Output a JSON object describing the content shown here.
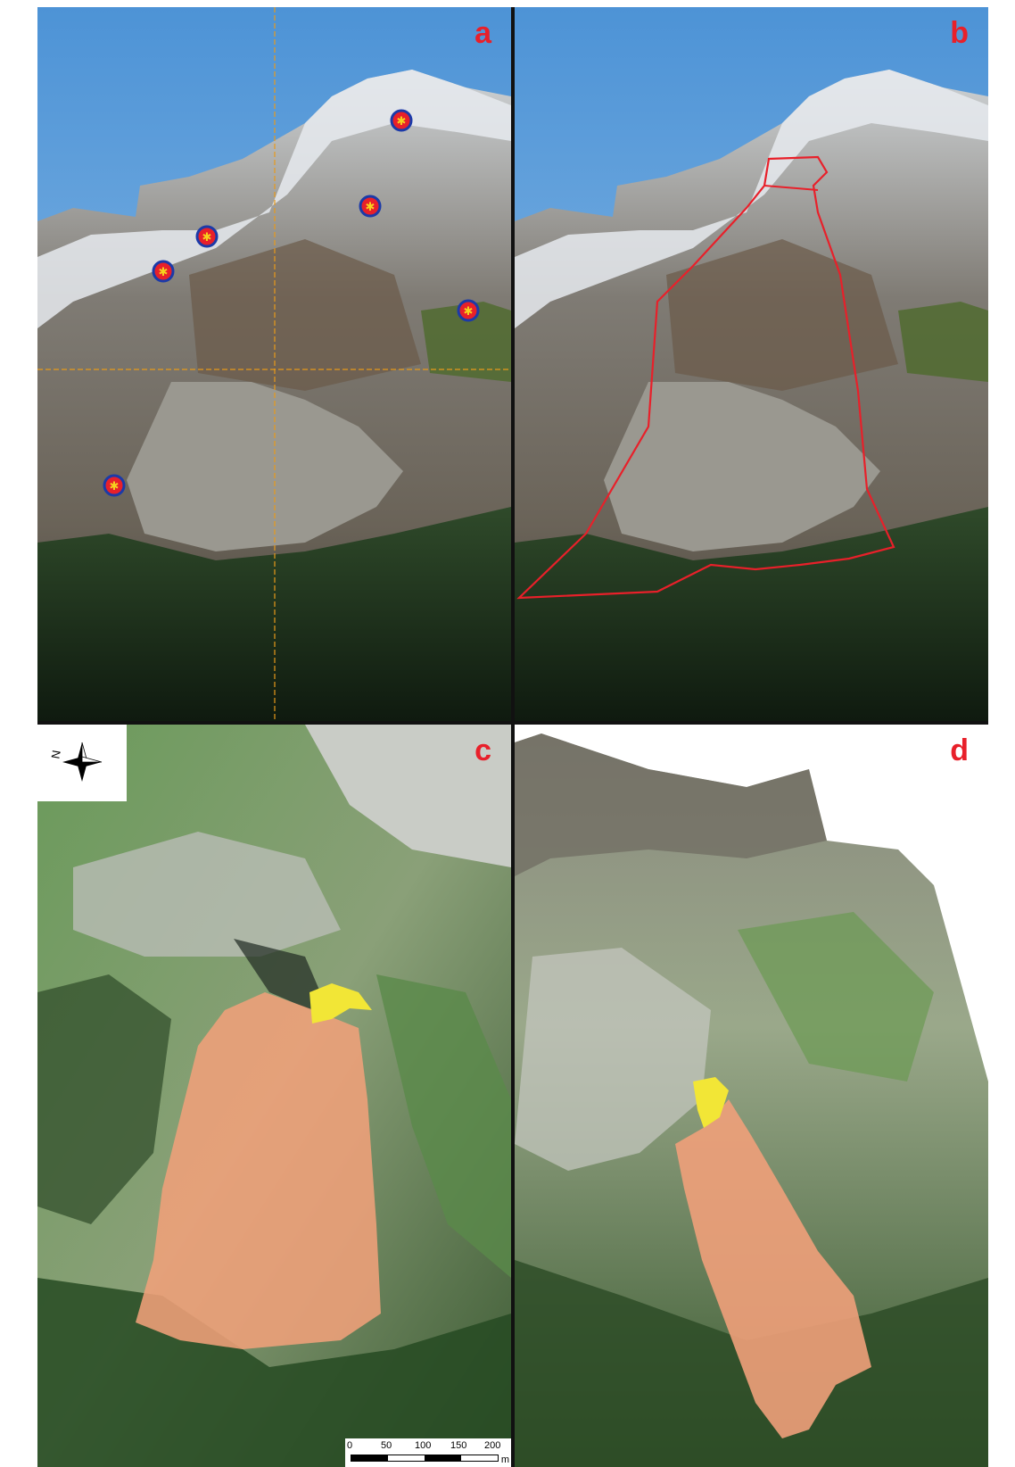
{
  "panels": {
    "a": {
      "label": "a"
    },
    "b": {
      "label": "b"
    },
    "c": {
      "label": "c"
    },
    "d": {
      "label": "d"
    }
  },
  "compass": {
    "north_letter": "N"
  },
  "scale_bar": {
    "ticks": [
      "0",
      "50",
      "100",
      "150",
      "200"
    ],
    "unit": "m"
  },
  "colors": {
    "panel_label": "#e8202a",
    "outline": "#e8202a",
    "deposit_fill": "#f0a07a",
    "scar_fill": "#f2e636",
    "marker_ring": "#1c3aa8",
    "marker_fill": "#e8202a",
    "marker_star": "#f6d21e",
    "guide_line": "#e89a1a"
  },
  "markers_count_panel_a": 6
}
